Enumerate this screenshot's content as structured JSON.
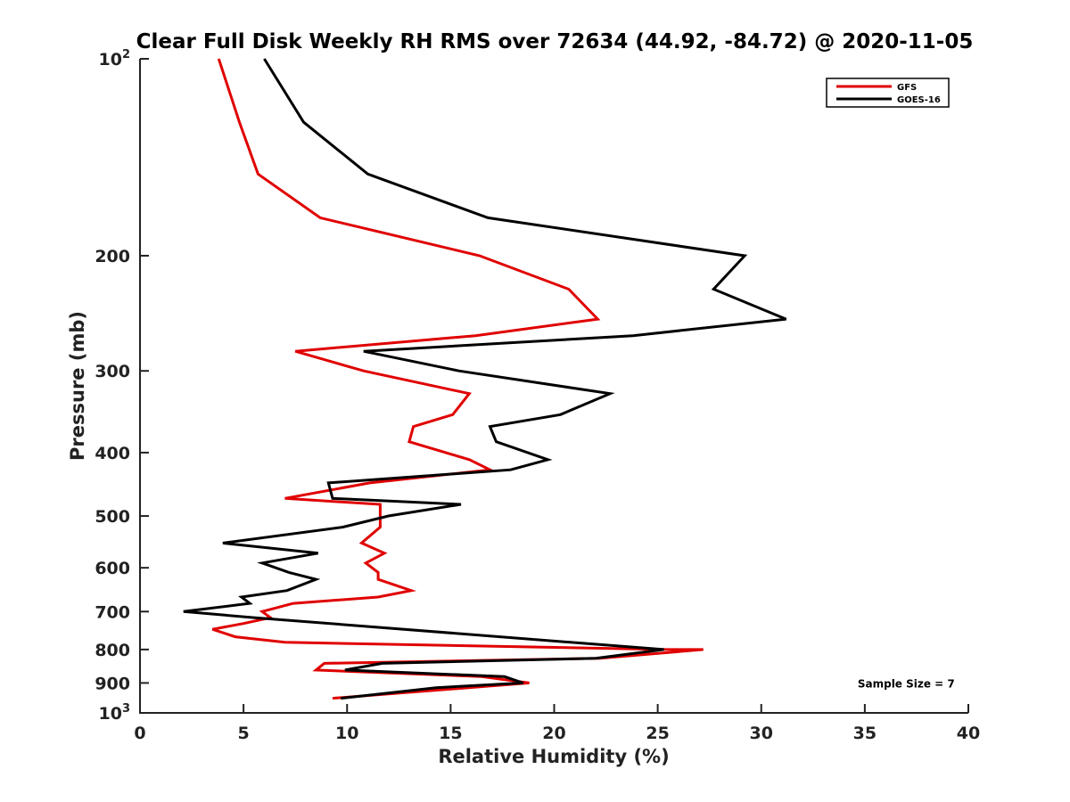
{
  "chart_data": {
    "type": "line",
    "title": "Clear Full Disk Weekly RH RMS over 72634 (44.92, -84.72) @ 2020-11-05",
    "xlabel": "Relative Humidity (%)",
    "ylabel": "Pressure (mb)",
    "xlim": [
      0,
      40
    ],
    "ylim": [
      100,
      1000
    ],
    "yscale": "log",
    "y_reversed": true,
    "grid": false,
    "legend_position": "top-right",
    "xticks": [
      0,
      5,
      10,
      15,
      20,
      25,
      30,
      35,
      40
    ],
    "xtick_labels": [
      "0",
      "5",
      "10",
      "15",
      "20",
      "25",
      "30",
      "35",
      "40"
    ],
    "yticks": [
      {
        "value": 100,
        "base": "10",
        "exp": "2"
      },
      {
        "value": 200,
        "label": "200"
      },
      {
        "value": 300,
        "label": "300"
      },
      {
        "value": 400,
        "label": "400"
      },
      {
        "value": 500,
        "label": "500"
      },
      {
        "value": 600,
        "label": "600"
      },
      {
        "value": 700,
        "label": "700"
      },
      {
        "value": 800,
        "label": "800"
      },
      {
        "value": 900,
        "label": "900"
      },
      {
        "value": 1000,
        "base": "10",
        "exp": "3"
      }
    ],
    "series": [
      {
        "name": "GFS",
        "color": "#e00000",
        "points": [
          [
            3.8,
            100
          ],
          [
            4.8,
            125
          ],
          [
            5.7,
            150
          ],
          [
            8.7,
            175
          ],
          [
            16.4,
            200
          ],
          [
            20.7,
            225
          ],
          [
            22.1,
            250
          ],
          [
            16.2,
            265
          ],
          [
            7.5,
            280
          ],
          [
            10.8,
            300
          ],
          [
            15.9,
            325
          ],
          [
            15.1,
            350
          ],
          [
            13.2,
            365
          ],
          [
            13.0,
            385
          ],
          [
            15.9,
            410
          ],
          [
            16.9,
            425
          ],
          [
            11.1,
            445
          ],
          [
            7.0,
            470
          ],
          [
            11.6,
            480
          ],
          [
            11.6,
            500
          ],
          [
            11.6,
            520
          ],
          [
            10.7,
            550
          ],
          [
            11.8,
            570
          ],
          [
            10.9,
            590
          ],
          [
            11.5,
            610
          ],
          [
            11.5,
            625
          ],
          [
            13.1,
            650
          ],
          [
            11.5,
            665
          ],
          [
            7.4,
            680
          ],
          [
            5.9,
            700
          ],
          [
            6.3,
            715
          ],
          [
            5.0,
            730
          ],
          [
            3.5,
            745
          ],
          [
            4.6,
            765
          ],
          [
            7.0,
            780
          ],
          [
            25.4,
            800
          ],
          [
            27.2,
            800
          ],
          [
            22.2,
            825
          ],
          [
            8.9,
            840
          ],
          [
            8.5,
            860
          ],
          [
            16.5,
            880
          ],
          [
            18.8,
            900
          ],
          [
            9.3,
            950
          ]
        ]
      },
      {
        "name": "GOES-16",
        "color": "#000000",
        "points": [
          [
            6.0,
            100
          ],
          [
            7.9,
            125
          ],
          [
            11.0,
            150
          ],
          [
            16.8,
            175
          ],
          [
            29.2,
            200
          ],
          [
            27.7,
            225
          ],
          [
            31.2,
            250
          ],
          [
            23.8,
            265
          ],
          [
            10.8,
            280
          ],
          [
            15.4,
            300
          ],
          [
            22.7,
            325
          ],
          [
            20.3,
            350
          ],
          [
            16.9,
            365
          ],
          [
            17.2,
            385
          ],
          [
            19.7,
            410
          ],
          [
            17.9,
            425
          ],
          [
            9.1,
            445
          ],
          [
            9.3,
            470
          ],
          [
            15.5,
            480
          ],
          [
            12.0,
            500
          ],
          [
            9.8,
            520
          ],
          [
            4.0,
            550
          ],
          [
            8.6,
            570
          ],
          [
            5.9,
            590
          ],
          [
            7.2,
            610
          ],
          [
            8.5,
            625
          ],
          [
            7.1,
            650
          ],
          [
            4.9,
            665
          ],
          [
            5.3,
            680
          ],
          [
            2.1,
            700
          ],
          [
            5.5,
            715
          ],
          [
            25.3,
            800
          ],
          [
            22.0,
            825
          ],
          [
            11.7,
            840
          ],
          [
            9.9,
            860
          ],
          [
            17.6,
            880
          ],
          [
            18.5,
            900
          ],
          [
            14.3,
            915
          ],
          [
            9.7,
            950
          ]
        ]
      }
    ],
    "annotations": [
      {
        "text": "Sample Size = 7",
        "x": 37.0,
        "y": 900
      }
    ]
  }
}
